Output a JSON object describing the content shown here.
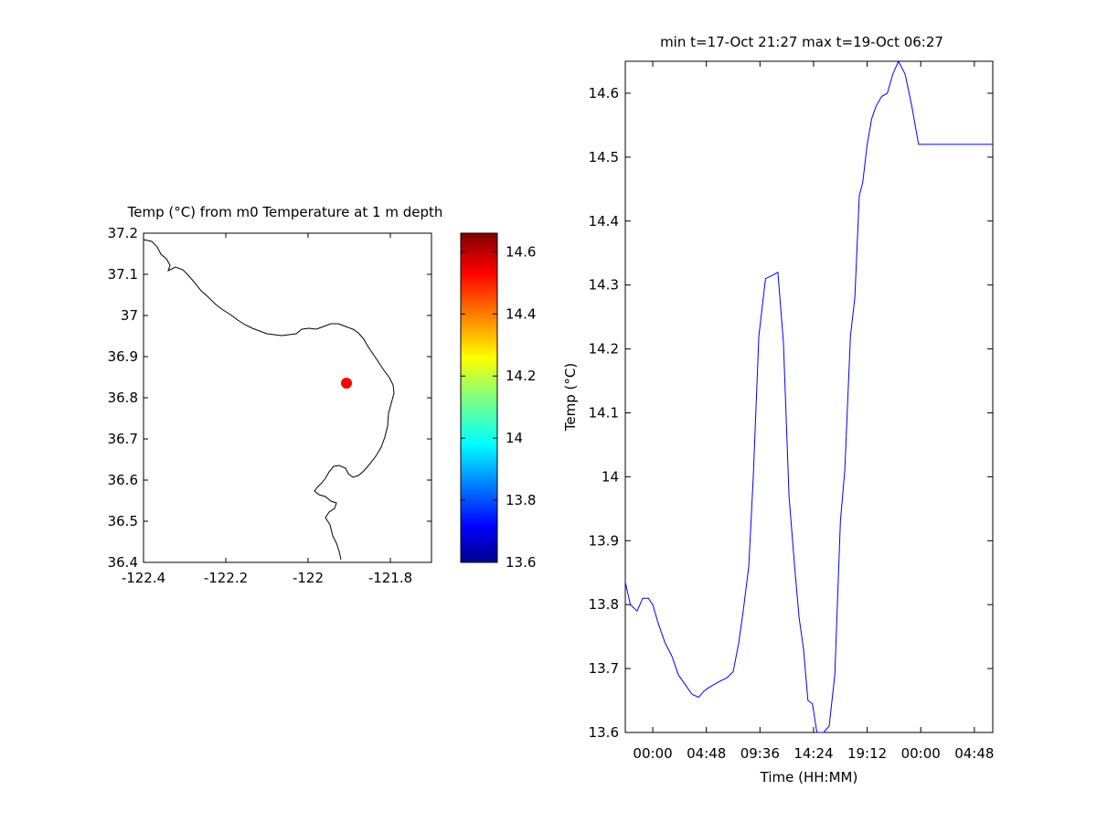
{
  "map_panel": {
    "title": "Temp (°C) from m0 Temperature at 1 m depth",
    "x_ticks": [
      "-122.4",
      "-122.2",
      "-122",
      "-121.8"
    ],
    "y_ticks": [
      "37.2",
      "37.1",
      "37",
      "36.9",
      "36.8",
      "36.7",
      "36.6",
      "36.5",
      "36.4"
    ],
    "colorbar_ticks": [
      "14.6",
      "14.4",
      "14.2",
      "14",
      "13.8",
      "13.6"
    ],
    "station_color": "#ff0000",
    "coastline_color": "#000000"
  },
  "chart_data": {
    "type": "line",
    "title": "min t=17-Oct 21:27 max t=19-Oct 06:27",
    "xlabel": "Time (HH:MM)",
    "ylabel": "Temp (°C)",
    "line_color": "#0000ff",
    "x_tick_labels": [
      "00:00",
      "04:48",
      "09:36",
      "14:24",
      "19:12",
      "00:00",
      "04:48"
    ],
    "y_tick_labels": [
      "13.6",
      "13.7",
      "13.8",
      "13.9",
      "14",
      "14.1",
      "14.2",
      "14.3",
      "14.4",
      "14.5",
      "14.6"
    ],
    "xlim_hours": [
      -2.46,
      30.45
    ],
    "ylim": [
      13.6,
      14.65
    ],
    "grid": false,
    "series": [
      {
        "x_hours": [
          -2.46,
          -2.0,
          -1.4,
          -0.9,
          -0.4,
          0.0,
          0.5,
          1.1,
          1.7,
          2.3,
          2.9,
          3.5,
          4.1,
          4.6,
          5.0,
          5.5,
          6.0,
          6.6,
          7.2,
          7.7,
          8.1,
          8.6,
          9.0,
          9.5,
          10.1,
          10.7,
          11.2,
          11.7,
          12.2,
          12.7,
          13.1,
          13.5,
          13.9,
          14.3,
          14.7,
          15.3,
          15.8,
          16.3,
          16.8,
          17.2,
          17.7,
          18.1,
          18.5,
          18.8,
          19.2,
          19.6,
          20.0,
          20.5,
          21.0,
          21.5,
          22.0,
          22.6,
          23.2,
          23.8,
          24.4,
          24.9,
          25.4,
          25.9,
          26.4,
          26.9,
          27.3,
          27.7,
          28.1,
          28.5,
          28.8,
          29.2,
          29.6,
          30.0,
          30.45
        ],
        "temp": [
          13.835,
          13.8,
          13.79,
          13.81,
          13.81,
          13.8,
          13.77,
          13.74,
          13.72,
          13.69,
          13.675,
          13.66,
          13.655,
          13.665,
          13.67,
          13.675,
          13.68,
          13.685,
          13.695,
          13.74,
          13.79,
          13.86,
          14.0,
          14.22,
          14.31,
          14.315,
          14.32,
          14.21,
          13.97,
          13.86,
          13.78,
          13.73,
          13.65,
          13.645,
          13.6,
          13.595,
          13.61,
          13.69,
          13.93,
          14.01,
          14.22,
          14.28,
          14.44,
          14.46,
          14.52,
          14.56,
          14.58,
          14.595,
          14.6,
          14.63,
          14.65,
          14.63,
          14.58,
          14.52,
          14.52,
          14.52,
          14.52,
          14.52,
          14.52,
          14.52,
          14.52,
          14.52,
          14.52,
          14.52,
          14.52,
          14.52,
          14.52,
          14.52,
          14.52
        ]
      }
    ]
  }
}
